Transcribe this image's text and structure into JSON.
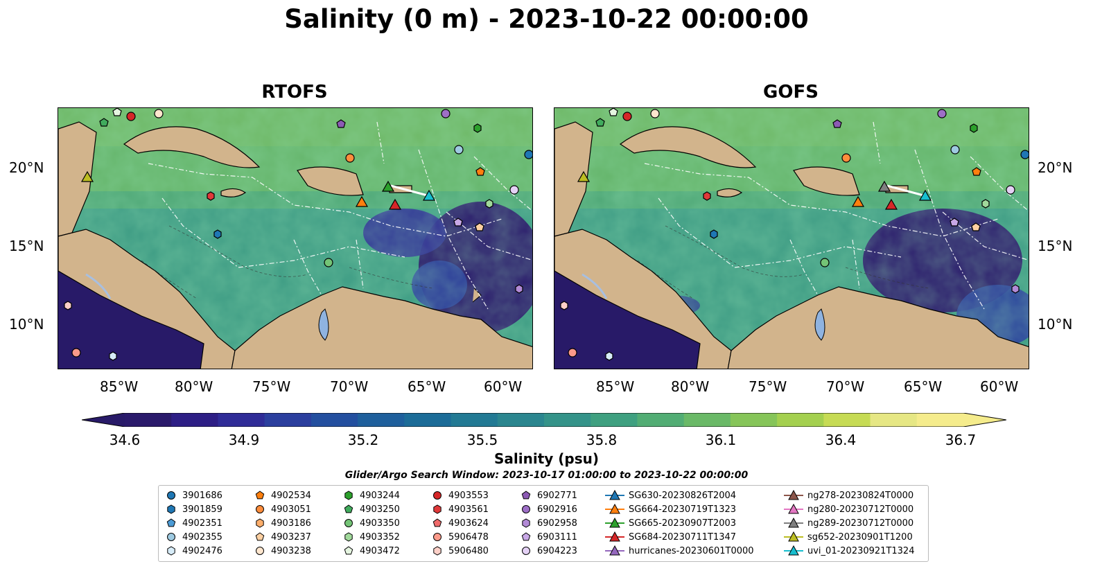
{
  "title": "Salinity (0 m) - 2023-10-22 00:00:00",
  "panels": [
    {
      "title": "RTOFS"
    },
    {
      "title": "GOFS"
    }
  ],
  "lat_ticks": [
    "20°N",
    "15°N",
    "10°N"
  ],
  "lon_ticks": [
    "85°W",
    "80°W",
    "75°W",
    "70°W",
    "65°W",
    "60°W"
  ],
  "colorbar": {
    "label": "Salinity (psu)",
    "ticks": [
      "34.6",
      "34.9",
      "35.2",
      "35.5",
      "35.8",
      "36.1",
      "36.4",
      "36.7"
    ],
    "colors": [
      "#2a1a6b",
      "#2d1e85",
      "#2f2c97",
      "#2b3f9e",
      "#234f9f",
      "#1e5f9c",
      "#1c6c98",
      "#227a94",
      "#2b868f",
      "#349389",
      "#3fa080",
      "#52ad74",
      "#6ab967",
      "#86c559",
      "#a4d04f",
      "#c6db54",
      "#e6e784",
      "#f5ec8c"
    ],
    "over_color": "#f5ec8c",
    "under_color": "#281a68"
  },
  "search_window": "Glider/Argo Search Window: 2023-10-17 01:00:00 to 2023-10-22 00:00:00",
  "legend": [
    {
      "label": "3901686",
      "marker": "circle",
      "color": "#1f77b4"
    },
    {
      "label": "3901859",
      "marker": "hexagon",
      "color": "#1f77b4"
    },
    {
      "label": "4902351",
      "marker": "pentagon",
      "color": "#4c9bd5"
    },
    {
      "label": "4902355",
      "marker": "circle",
      "color": "#9ecae1"
    },
    {
      "label": "4902476",
      "marker": "hexagon",
      "color": "#d7ecf8"
    },
    {
      "label": "4902534",
      "marker": "pentagon",
      "color": "#ff7f0e"
    },
    {
      "label": "4903051",
      "marker": "circle",
      "color": "#fd8d3c"
    },
    {
      "label": "4903186",
      "marker": "hexagon",
      "color": "#fdae6b"
    },
    {
      "label": "4903237",
      "marker": "pentagon",
      "color": "#fdd0a2"
    },
    {
      "label": "4903238",
      "marker": "circle",
      "color": "#fee6ce"
    },
    {
      "label": "4903244",
      "marker": "hexagon",
      "color": "#2ca02c"
    },
    {
      "label": "4903250",
      "marker": "pentagon",
      "color": "#41ab5d"
    },
    {
      "label": "4903350",
      "marker": "circle",
      "color": "#74c476"
    },
    {
      "label": "4903352",
      "marker": "hexagon",
      "color": "#a1d99b"
    },
    {
      "label": "4903472",
      "marker": "pentagon",
      "color": "#e5f5e0"
    },
    {
      "label": "4903553",
      "marker": "circle",
      "color": "#d62728"
    },
    {
      "label": "4903561",
      "marker": "hexagon",
      "color": "#e0393a"
    },
    {
      "label": "4903624",
      "marker": "pentagon",
      "color": "#ef6a6a"
    },
    {
      "label": "5906478",
      "marker": "circle",
      "color": "#fb9a8a"
    },
    {
      "label": "5906480",
      "marker": "hexagon",
      "color": "#fdd0c8"
    },
    {
      "label": "6902771",
      "marker": "pentagon",
      "color": "#8c5ab4"
    },
    {
      "label": "6902916",
      "marker": "circle",
      "color": "#9e6fc7"
    },
    {
      "label": "6902958",
      "marker": "hexagon",
      "color": "#b28ad6"
    },
    {
      "label": "6903111",
      "marker": "pentagon",
      "color": "#c8a8e6"
    },
    {
      "label": "6904223",
      "marker": "circle",
      "color": "#e4d1f5"
    },
    {
      "label": "SG630-20230826T2004",
      "marker": "triangle",
      "color": "#1f77b4"
    },
    {
      "label": "SG664-20230719T1323",
      "marker": "triangle",
      "color": "#ff7f0e"
    },
    {
      "label": "SG665-20230907T2003",
      "marker": "triangle",
      "color": "#2ca02c"
    },
    {
      "label": "SG684-20230711T1347",
      "marker": "triangle",
      "color": "#d62728"
    },
    {
      "label": "hurricanes-20230601T0000",
      "marker": "triangle",
      "color": "#9467bd"
    },
    {
      "label": "ng278-20230824T0000",
      "marker": "triangle",
      "color": "#8c564b"
    },
    {
      "label": "ng280-20230712T0000",
      "marker": "triangle",
      "color": "#e377c2"
    },
    {
      "label": "ng289-20230712T0000",
      "marker": "triangle",
      "color": "#7f7f7f"
    },
    {
      "label": "sg652-20230901T1200",
      "marker": "triangle",
      "color": "#bcbd22"
    },
    {
      "label": "uvi_01-20230921T1324",
      "marker": "triangle",
      "color": "#17becf"
    }
  ]
}
